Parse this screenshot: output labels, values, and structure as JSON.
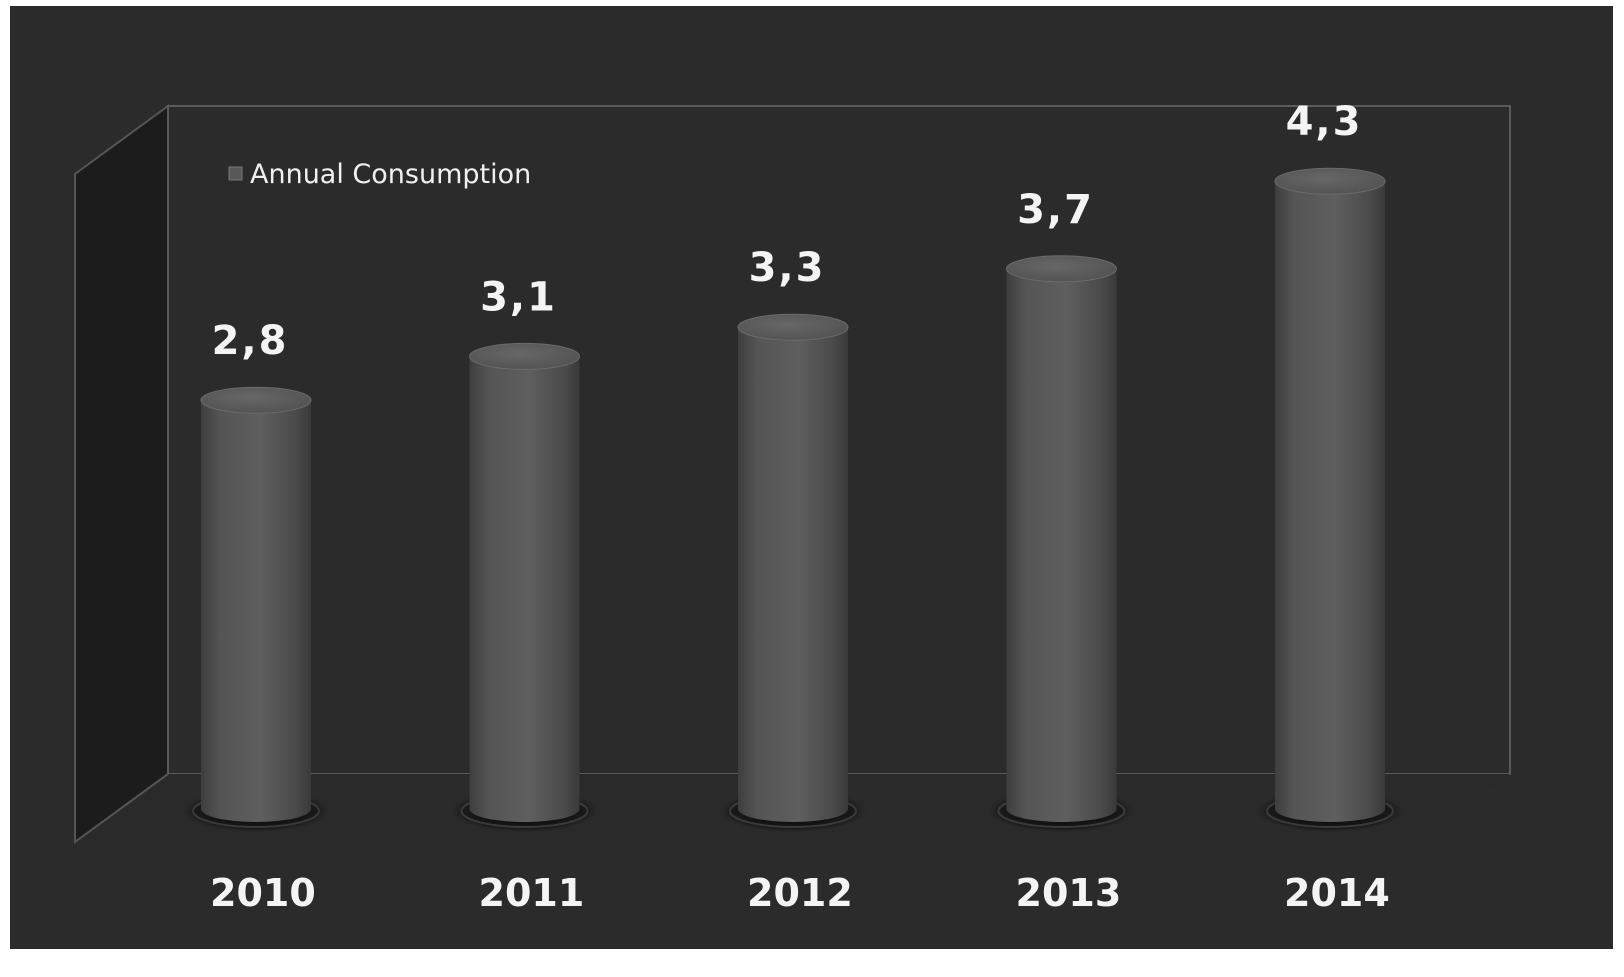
{
  "chart_data": {
    "type": "bar",
    "style": "3d-cylinder",
    "categories": [
      "2010",
      "2011",
      "2012",
      "2013",
      "2014"
    ],
    "series": [
      {
        "name": "Annual Consumption",
        "values": [
          2.8,
          3.1,
          3.3,
          3.7,
          4.3
        ],
        "value_labels": [
          "2,8",
          "3,1",
          "3,3",
          "3,7",
          "4,3"
        ]
      }
    ],
    "title": "",
    "xlabel": "",
    "ylabel": "",
    "grid": false,
    "legend_position": "top-left",
    "colors": {
      "background": "#2b2b2b",
      "bar": "#585858",
      "text": "#f4f4f4",
      "wall": "#1c1c1c",
      "outline": "#5a5a5a"
    }
  }
}
